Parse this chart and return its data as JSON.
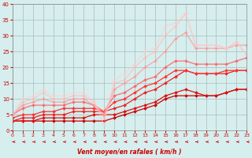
{
  "title": "",
  "xlabel": "Vent moyen/en rafales ( km/h )",
  "ylabel": "",
  "bg_color": "#d6eeee",
  "grid_color": "#aabbbb",
  "xlim": [
    0,
    23
  ],
  "ylim": [
    0,
    40
  ],
  "xticks": [
    0,
    1,
    2,
    3,
    4,
    5,
    6,
    7,
    8,
    9,
    10,
    11,
    12,
    13,
    14,
    15,
    16,
    17,
    18,
    19,
    20,
    21,
    22,
    23
  ],
  "yticks": [
    0,
    5,
    10,
    15,
    20,
    25,
    30,
    35,
    40
  ],
  "series": [
    {
      "x": [
        0,
        1,
        2,
        3,
        4,
        5,
        6,
        7,
        8,
        9,
        10,
        11,
        12,
        13,
        14,
        15,
        16,
        17,
        18,
        19,
        20,
        21,
        22,
        23
      ],
      "y": [
        3,
        3,
        3,
        3,
        3,
        3,
        3,
        3,
        3,
        3,
        4,
        5,
        6,
        7,
        8,
        10,
        11,
        11,
        11,
        11,
        11,
        12,
        13,
        13
      ],
      "color": "#cc0000",
      "marker": "D",
      "markersize": 2.0,
      "linewidth": 0.9,
      "alpha": 1.0
    },
    {
      "x": [
        0,
        1,
        2,
        3,
        4,
        5,
        6,
        7,
        8,
        9,
        10,
        11,
        12,
        13,
        14,
        15,
        16,
        17,
        18,
        19,
        20,
        21,
        22,
        23
      ],
      "y": [
        3,
        3,
        3,
        4,
        4,
        4,
        4,
        4,
        5,
        5,
        5,
        6,
        7,
        8,
        9,
        11,
        12,
        13,
        12,
        11,
        11,
        12,
        13,
        13
      ],
      "color": "#dd1111",
      "marker": "D",
      "markersize": 2.0,
      "linewidth": 0.9,
      "alpha": 1.0
    },
    {
      "x": [
        0,
        1,
        2,
        3,
        4,
        5,
        6,
        7,
        8,
        9,
        10,
        11,
        12,
        13,
        14,
        15,
        16,
        17,
        18,
        19,
        20,
        21,
        22,
        23
      ],
      "y": [
        3,
        4,
        4,
        5,
        5,
        5,
        6,
        6,
        6,
        6,
        7,
        8,
        10,
        12,
        13,
        15,
        17,
        19,
        18,
        18,
        18,
        18,
        19,
        19
      ],
      "color": "#ee2222",
      "marker": "D",
      "markersize": 2.0,
      "linewidth": 0.9,
      "alpha": 1.0
    },
    {
      "x": [
        0,
        1,
        2,
        3,
        4,
        5,
        6,
        7,
        8,
        9,
        10,
        11,
        12,
        13,
        14,
        15,
        16,
        17,
        18,
        19,
        20,
        21,
        22,
        23
      ],
      "y": [
        4,
        5,
        5,
        6,
        6,
        7,
        7,
        7,
        7,
        6,
        9,
        10,
        12,
        14,
        15,
        17,
        19,
        19,
        18,
        18,
        18,
        19,
        19,
        19
      ],
      "color": "#ff3333",
      "marker": "D",
      "markersize": 2.0,
      "linewidth": 0.9,
      "alpha": 1.0
    },
    {
      "x": [
        0,
        1,
        2,
        3,
        4,
        5,
        6,
        7,
        8,
        9,
        10,
        11,
        12,
        13,
        14,
        15,
        16,
        17,
        18,
        19,
        20,
        21,
        22,
        23
      ],
      "y": [
        5,
        7,
        8,
        8,
        8,
        8,
        9,
        9,
        8,
        6,
        11,
        12,
        14,
        16,
        17,
        20,
        22,
        22,
        21,
        21,
        21,
        21,
        22,
        23
      ],
      "color": "#ff6666",
      "marker": "D",
      "markersize": 2.0,
      "linewidth": 1.0,
      "alpha": 0.85
    },
    {
      "x": [
        0,
        1,
        2,
        3,
        4,
        5,
        6,
        7,
        8,
        9,
        10,
        11,
        12,
        13,
        14,
        15,
        16,
        17,
        18,
        19,
        20,
        21,
        22,
        23
      ],
      "y": [
        5,
        8,
        9,
        10,
        9,
        9,
        10,
        10,
        8,
        5,
        13,
        15,
        17,
        20,
        22,
        25,
        29,
        31,
        26,
        26,
        26,
        26,
        27,
        27
      ],
      "color": "#ff9999",
      "marker": "D",
      "markersize": 2.0,
      "linewidth": 1.0,
      "alpha": 0.75
    },
    {
      "x": [
        0,
        1,
        2,
        3,
        4,
        5,
        6,
        7,
        8,
        9,
        10,
        11,
        12,
        13,
        14,
        15,
        16,
        17,
        18,
        19,
        20,
        21,
        22,
        23
      ],
      "y": [
        5,
        9,
        10,
        12,
        10,
        10,
        11,
        11,
        9,
        4,
        15,
        16,
        20,
        23,
        25,
        30,
        33,
        37,
        27,
        27,
        27,
        26,
        28,
        24
      ],
      "color": "#ffbbbb",
      "marker": "D",
      "markersize": 2.0,
      "linewidth": 1.0,
      "alpha": 0.65
    },
    {
      "x": [
        0,
        1,
        2,
        3,
        4,
        5,
        6,
        7,
        8,
        9,
        10,
        11,
        12,
        13,
        14,
        15,
        16,
        17,
        18,
        19,
        20,
        21,
        22,
        23
      ],
      "y": [
        5,
        10,
        11,
        13,
        11,
        11,
        12,
        12,
        9,
        2,
        16,
        18,
        21,
        25,
        26,
        33,
        34,
        37,
        27,
        27,
        27,
        26,
        28,
        24
      ],
      "color": "#ffcccc",
      "marker": "D",
      "markersize": 2.0,
      "linewidth": 1.0,
      "alpha": 0.55
    }
  ],
  "wind_arrows": {
    "x": [
      0,
      1,
      2,
      3,
      4,
      5,
      6,
      7,
      8,
      9,
      10,
      11,
      12,
      13,
      14,
      15,
      16,
      17,
      18,
      19,
      20,
      21,
      22,
      23
    ],
    "color": "#cc0000"
  }
}
